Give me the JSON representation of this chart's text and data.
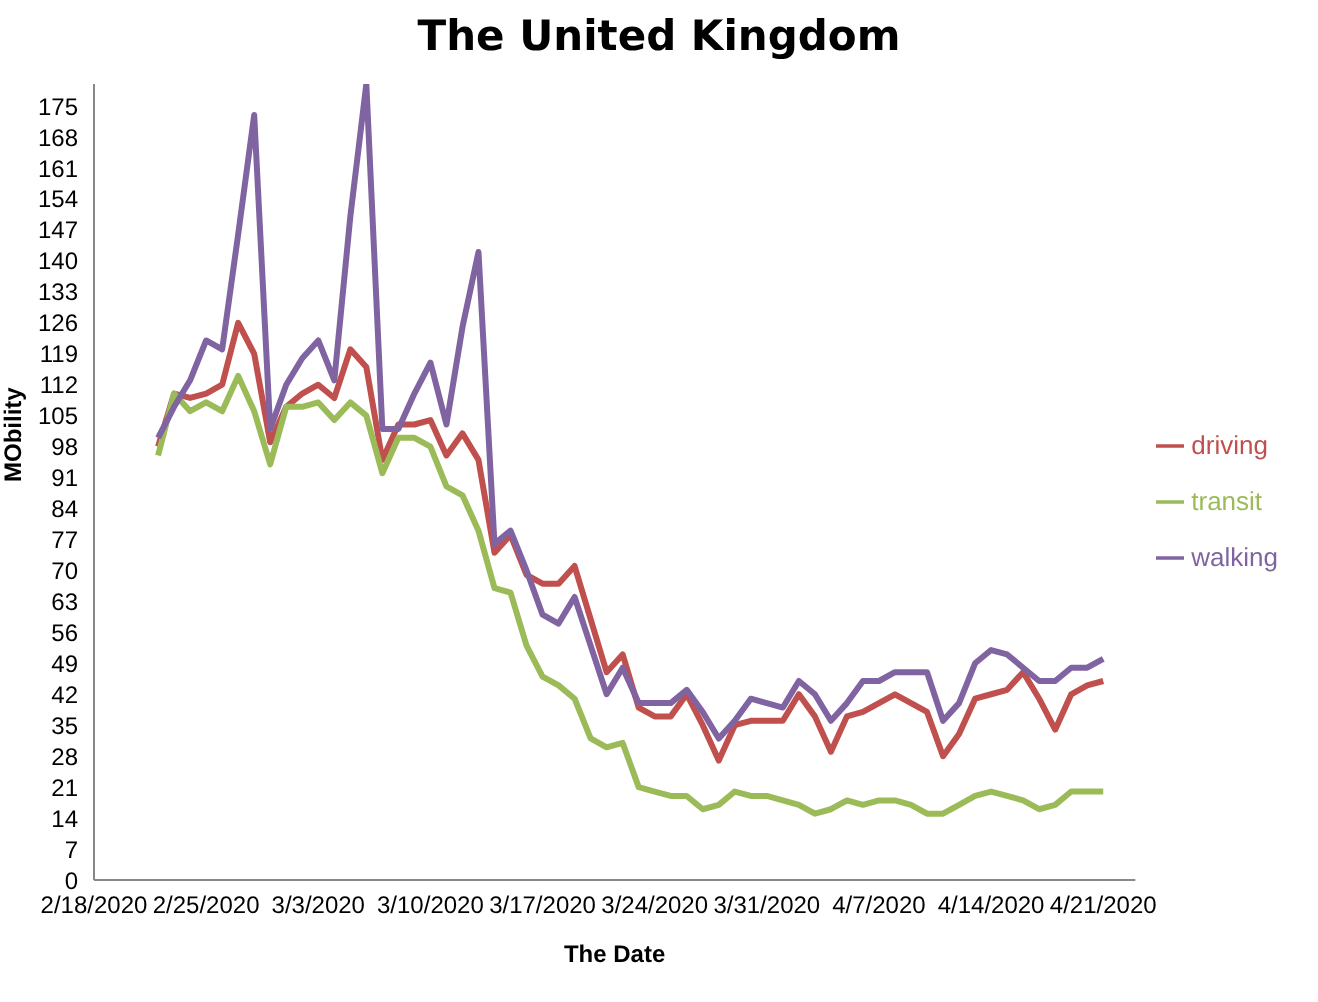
{
  "chart_data": {
    "type": "line",
    "title": "The United Kingdom",
    "xlabel": "The Date",
    "ylabel": "MObility",
    "x": [
      "2020-02-22",
      "2020-02-23",
      "2020-02-24",
      "2020-02-25",
      "2020-02-26",
      "2020-02-27",
      "2020-02-28",
      "2020-02-29",
      "2020-03-01",
      "2020-03-02",
      "2020-03-03",
      "2020-03-04",
      "2020-03-05",
      "2020-03-06",
      "2020-03-07",
      "2020-03-08",
      "2020-03-09",
      "2020-03-10",
      "2020-03-11",
      "2020-03-12",
      "2020-03-13",
      "2020-03-14",
      "2020-03-15",
      "2020-03-16",
      "2020-03-17",
      "2020-03-18",
      "2020-03-19",
      "2020-03-20",
      "2020-03-21",
      "2020-03-22",
      "2020-03-23",
      "2020-03-24",
      "2020-03-25",
      "2020-03-26",
      "2020-03-27",
      "2020-03-28",
      "2020-03-29",
      "2020-03-30",
      "2020-03-31",
      "2020-04-01",
      "2020-04-02",
      "2020-04-03",
      "2020-04-04",
      "2020-04-05",
      "2020-04-06",
      "2020-04-07",
      "2020-04-08",
      "2020-04-09",
      "2020-04-10",
      "2020-04-11",
      "2020-04-12",
      "2020-04-13",
      "2020-04-14",
      "2020-04-15",
      "2020-04-16",
      "2020-04-17",
      "2020-04-18",
      "2020-04-19",
      "2020-04-20",
      "2020-04-21"
    ],
    "series": [
      {
        "name": "driving",
        "color": "#c0504d",
        "values": [
          98,
          110,
          109,
          110,
          112,
          126,
          119,
          99,
          107,
          110,
          112,
          109,
          120,
          116,
          95,
          103,
          103,
          104,
          96,
          101,
          95,
          74,
          78,
          69,
          67,
          67,
          71,
          59,
          47,
          51,
          39,
          37,
          37,
          42,
          35,
          27,
          35,
          36,
          36,
          36,
          42,
          37,
          29,
          37,
          38,
          40,
          42,
          40,
          38,
          28,
          33,
          41,
          42,
          43,
          47,
          41,
          34,
          42,
          44,
          45
        ]
      },
      {
        "name": "transit",
        "color": "#9bbb59",
        "values": [
          96,
          110,
          106,
          108,
          106,
          114,
          106,
          94,
          107,
          107,
          108,
          104,
          108,
          105,
          92,
          100,
          100,
          98,
          89,
          87,
          79,
          66,
          65,
          53,
          46,
          44,
          41,
          32,
          30,
          31,
          21,
          20,
          19,
          19,
          16,
          17,
          20,
          19,
          19,
          18,
          17,
          15,
          16,
          18,
          17,
          18,
          18,
          17,
          15,
          15,
          17,
          19,
          20,
          19,
          18,
          16,
          17,
          20,
          20,
          20
        ]
      },
      {
        "name": "walking",
        "color": "#8064a2",
        "values": [
          100,
          107,
          113,
          122,
          120,
          146,
          173,
          102,
          112,
          118,
          122,
          113,
          150,
          180,
          102,
          102,
          110,
          117,
          103,
          125,
          142,
          76,
          79,
          70,
          60,
          58,
          64,
          53,
          42,
          48,
          40,
          40,
          40,
          43,
          38,
          32,
          36,
          41,
          40,
          39,
          45,
          42,
          36,
          40,
          45,
          45,
          47,
          47,
          47,
          36,
          40,
          49,
          52,
          51,
          48,
          45,
          45,
          48,
          48,
          50
        ]
      }
    ],
    "xlim": [
      "2020-02-18",
      "2020-04-23"
    ],
    "xticks": [
      {
        "value": "2020-02-18",
        "label": "2/18/2020"
      },
      {
        "value": "2020-02-25",
        "label": "2/25/2020"
      },
      {
        "value": "2020-03-03",
        "label": "3/3/2020"
      },
      {
        "value": "2020-03-10",
        "label": "3/10/2020"
      },
      {
        "value": "2020-03-17",
        "label": "3/17/2020"
      },
      {
        "value": "2020-03-24",
        "label": "3/24/2020"
      },
      {
        "value": "2020-03-31",
        "label": "3/31/2020"
      },
      {
        "value": "2020-04-07",
        "label": "4/7/2020"
      },
      {
        "value": "2020-04-14",
        "label": "4/14/2020"
      },
      {
        "value": "2020-04-21",
        "label": "4/21/2020"
      }
    ],
    "ylim": [
      0,
      180
    ],
    "yticks": [
      0,
      7,
      14,
      21,
      28,
      35,
      42,
      49,
      56,
      63,
      70,
      77,
      84,
      91,
      98,
      105,
      112,
      119,
      126,
      133,
      140,
      147,
      154,
      161,
      168,
      175
    ],
    "grid": false,
    "legend": "right",
    "marker": "none",
    "line_style": "solid"
  }
}
